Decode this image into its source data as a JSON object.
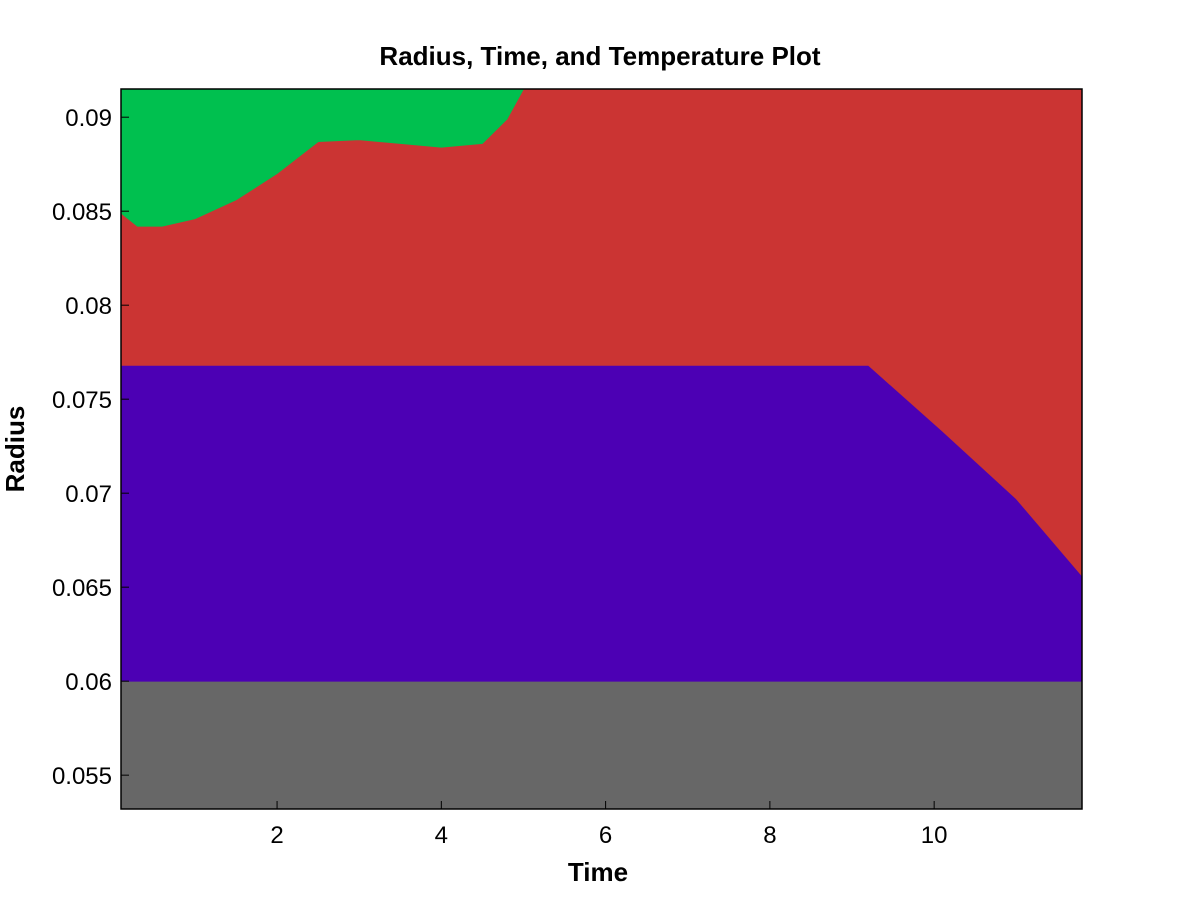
{
  "chart_data": {
    "type": "area",
    "title": "Radius, Time, and Temperature Plot",
    "xlabel": "Time",
    "ylabel": "Radius",
    "xlim": [
      0.1,
      11.8
    ],
    "ylim": [
      0.0532,
      0.0915
    ],
    "xticks": [
      2,
      4,
      6,
      8,
      10
    ],
    "xtick_labels": [
      "2",
      "4",
      "6",
      "8",
      "10"
    ],
    "yticks": [
      0.055,
      0.06,
      0.065,
      0.07,
      0.075,
      0.08,
      0.085,
      0.09
    ],
    "ytick_labels": [
      "0.055",
      "0.06",
      "0.065",
      "0.07",
      "0.075",
      "0.08",
      "0.085",
      "0.09"
    ],
    "grid": false,
    "regions": [
      {
        "color": "#676767",
        "bounds": [
          {
            "x": 0.1,
            "y_low": 0.0532,
            "y_high": 0.06
          },
          {
            "x": 11.8,
            "y_low": 0.0532,
            "y_high": 0.06
          }
        ]
      },
      {
        "color": "#4c00b4",
        "bounds": [
          {
            "x": 0.1,
            "y_low": 0.06,
            "y_high": 0.0768
          },
          {
            "x": 9.2,
            "y_low": 0.06,
            "y_high": 0.0768
          },
          {
            "x": 10.1,
            "y_low": 0.06,
            "y_high": 0.0733
          },
          {
            "x": 11.0,
            "y_low": 0.06,
            "y_high": 0.0697
          },
          {
            "x": 11.8,
            "y_low": 0.06,
            "y_high": 0.0656
          }
        ]
      },
      {
        "color": "#cb3433",
        "bounds": [
          {
            "x": 0.1,
            "y_low": 0.0768,
            "y_high": 0.0849
          },
          {
            "x": 0.3,
            "y_low": 0.0768,
            "y_high": 0.0842
          },
          {
            "x": 0.6,
            "y_low": 0.0768,
            "y_high": 0.0842
          },
          {
            "x": 1.0,
            "y_low": 0.0768,
            "y_high": 0.0846
          },
          {
            "x": 1.5,
            "y_low": 0.0768,
            "y_high": 0.0856
          },
          {
            "x": 2.0,
            "y_low": 0.0768,
            "y_high": 0.087
          },
          {
            "x": 2.5,
            "y_low": 0.0768,
            "y_high": 0.0887
          },
          {
            "x": 3.0,
            "y_low": 0.0768,
            "y_high": 0.0888
          },
          {
            "x": 3.5,
            "y_low": 0.0768,
            "y_high": 0.0886
          },
          {
            "x": 4.0,
            "y_low": 0.0768,
            "y_high": 0.0884
          },
          {
            "x": 4.5,
            "y_low": 0.0768,
            "y_high": 0.0886
          },
          {
            "x": 4.8,
            "y_low": 0.0768,
            "y_high": 0.0899
          },
          {
            "x": 5.0,
            "y_low": 0.0768,
            "y_high": 0.0915
          },
          {
            "x": 9.2,
            "y_low": 0.0768,
            "y_high": 0.0915
          },
          {
            "x": 10.1,
            "y_low": 0.0733,
            "y_high": 0.0915
          },
          {
            "x": 11.0,
            "y_low": 0.0697,
            "y_high": 0.0915
          },
          {
            "x": 11.8,
            "y_low": 0.0656,
            "y_high": 0.0915
          }
        ]
      },
      {
        "color": "#00c04f",
        "bounds": [
          {
            "x": 0.1,
            "y_low": 0.0849,
            "y_high": 0.0915
          },
          {
            "x": 0.3,
            "y_low": 0.0842,
            "y_high": 0.0915
          },
          {
            "x": 0.6,
            "y_low": 0.0842,
            "y_high": 0.0915
          },
          {
            "x": 1.0,
            "y_low": 0.0846,
            "y_high": 0.0915
          },
          {
            "x": 1.5,
            "y_low": 0.0856,
            "y_high": 0.0915
          },
          {
            "x": 2.0,
            "y_low": 0.087,
            "y_high": 0.0915
          },
          {
            "x": 2.5,
            "y_low": 0.0887,
            "y_high": 0.0915
          },
          {
            "x": 3.0,
            "y_low": 0.0888,
            "y_high": 0.0915
          },
          {
            "x": 3.5,
            "y_low": 0.0886,
            "y_high": 0.0915
          },
          {
            "x": 4.0,
            "y_low": 0.0884,
            "y_high": 0.0915
          },
          {
            "x": 4.5,
            "y_low": 0.0886,
            "y_high": 0.0915
          },
          {
            "x": 4.8,
            "y_low": 0.0899,
            "y_high": 0.0915
          },
          {
            "x": 5.0,
            "y_low": 0.0915,
            "y_high": 0.0915
          }
        ]
      }
    ]
  }
}
